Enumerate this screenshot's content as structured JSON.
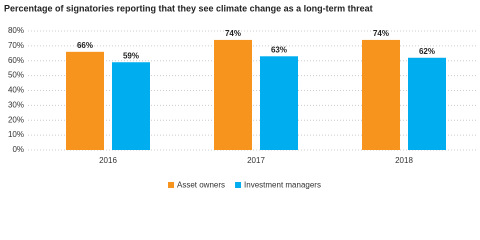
{
  "chart_data": {
    "type": "bar",
    "title": "Percentage of signatories reporting that they see climate change as a long-term threat",
    "categories": [
      "2016",
      "2017",
      "2018"
    ],
    "series": [
      {
        "name": "Asset owners",
        "color": "#f7941d",
        "values": [
          66,
          74,
          74
        ],
        "value_labels": [
          "66%",
          "74%",
          "74%"
        ]
      },
      {
        "name": "Investment managers",
        "color": "#00aeef",
        "values": [
          59,
          63,
          62
        ],
        "value_labels": [
          "59%",
          "63%",
          "62%"
        ]
      }
    ],
    "ylim": [
      0,
      80
    ],
    "yticks": [
      {
        "value": 0,
        "label": "0%"
      },
      {
        "value": 10,
        "label": "10%"
      },
      {
        "value": 20,
        "label": "20%"
      },
      {
        "value": 30,
        "label": "30%"
      },
      {
        "value": 40,
        "label": "40%"
      },
      {
        "value": 50,
        "label": "50%"
      },
      {
        "value": 60,
        "label": "60%"
      },
      {
        "value": 70,
        "label": "70%"
      },
      {
        "value": 80,
        "label": "80%"
      }
    ],
    "grid": true,
    "legend": "bottom"
  }
}
